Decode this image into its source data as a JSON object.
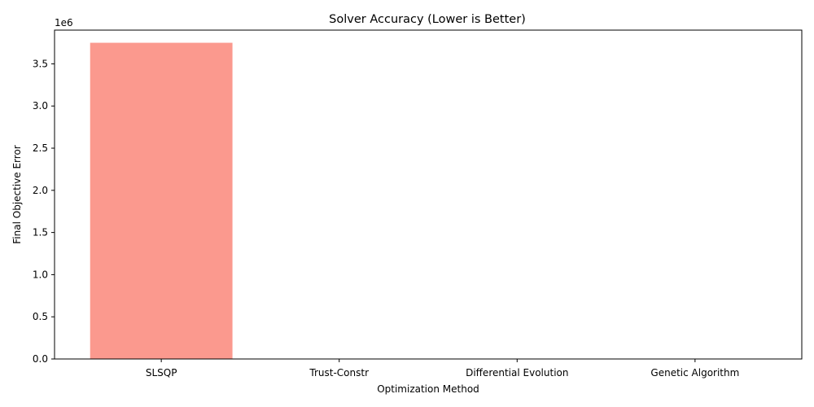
{
  "chart_data": {
    "type": "bar",
    "title": "Solver Accuracy (Lower is Better)",
    "xlabel": "Optimization Method",
    "ylabel": "Final Objective Error",
    "categories": [
      "SLSQP",
      "Trust-Constr",
      "Differential Evolution",
      "Genetic Algorithm"
    ],
    "values": [
      3750000,
      0,
      0,
      0
    ],
    "ylim": [
      0,
      3900000
    ],
    "yticks": [
      0,
      500000,
      1000000,
      1500000,
      2000000,
      2500000,
      3000000,
      3500000
    ],
    "ytick_labels": [
      "0.0",
      "0.5",
      "1.0",
      "1.5",
      "2.0",
      "2.5",
      "3.0",
      "3.5"
    ],
    "offset_label": "1e6",
    "bar_color": "#fa8072",
    "grid": false,
    "legend": "none"
  }
}
